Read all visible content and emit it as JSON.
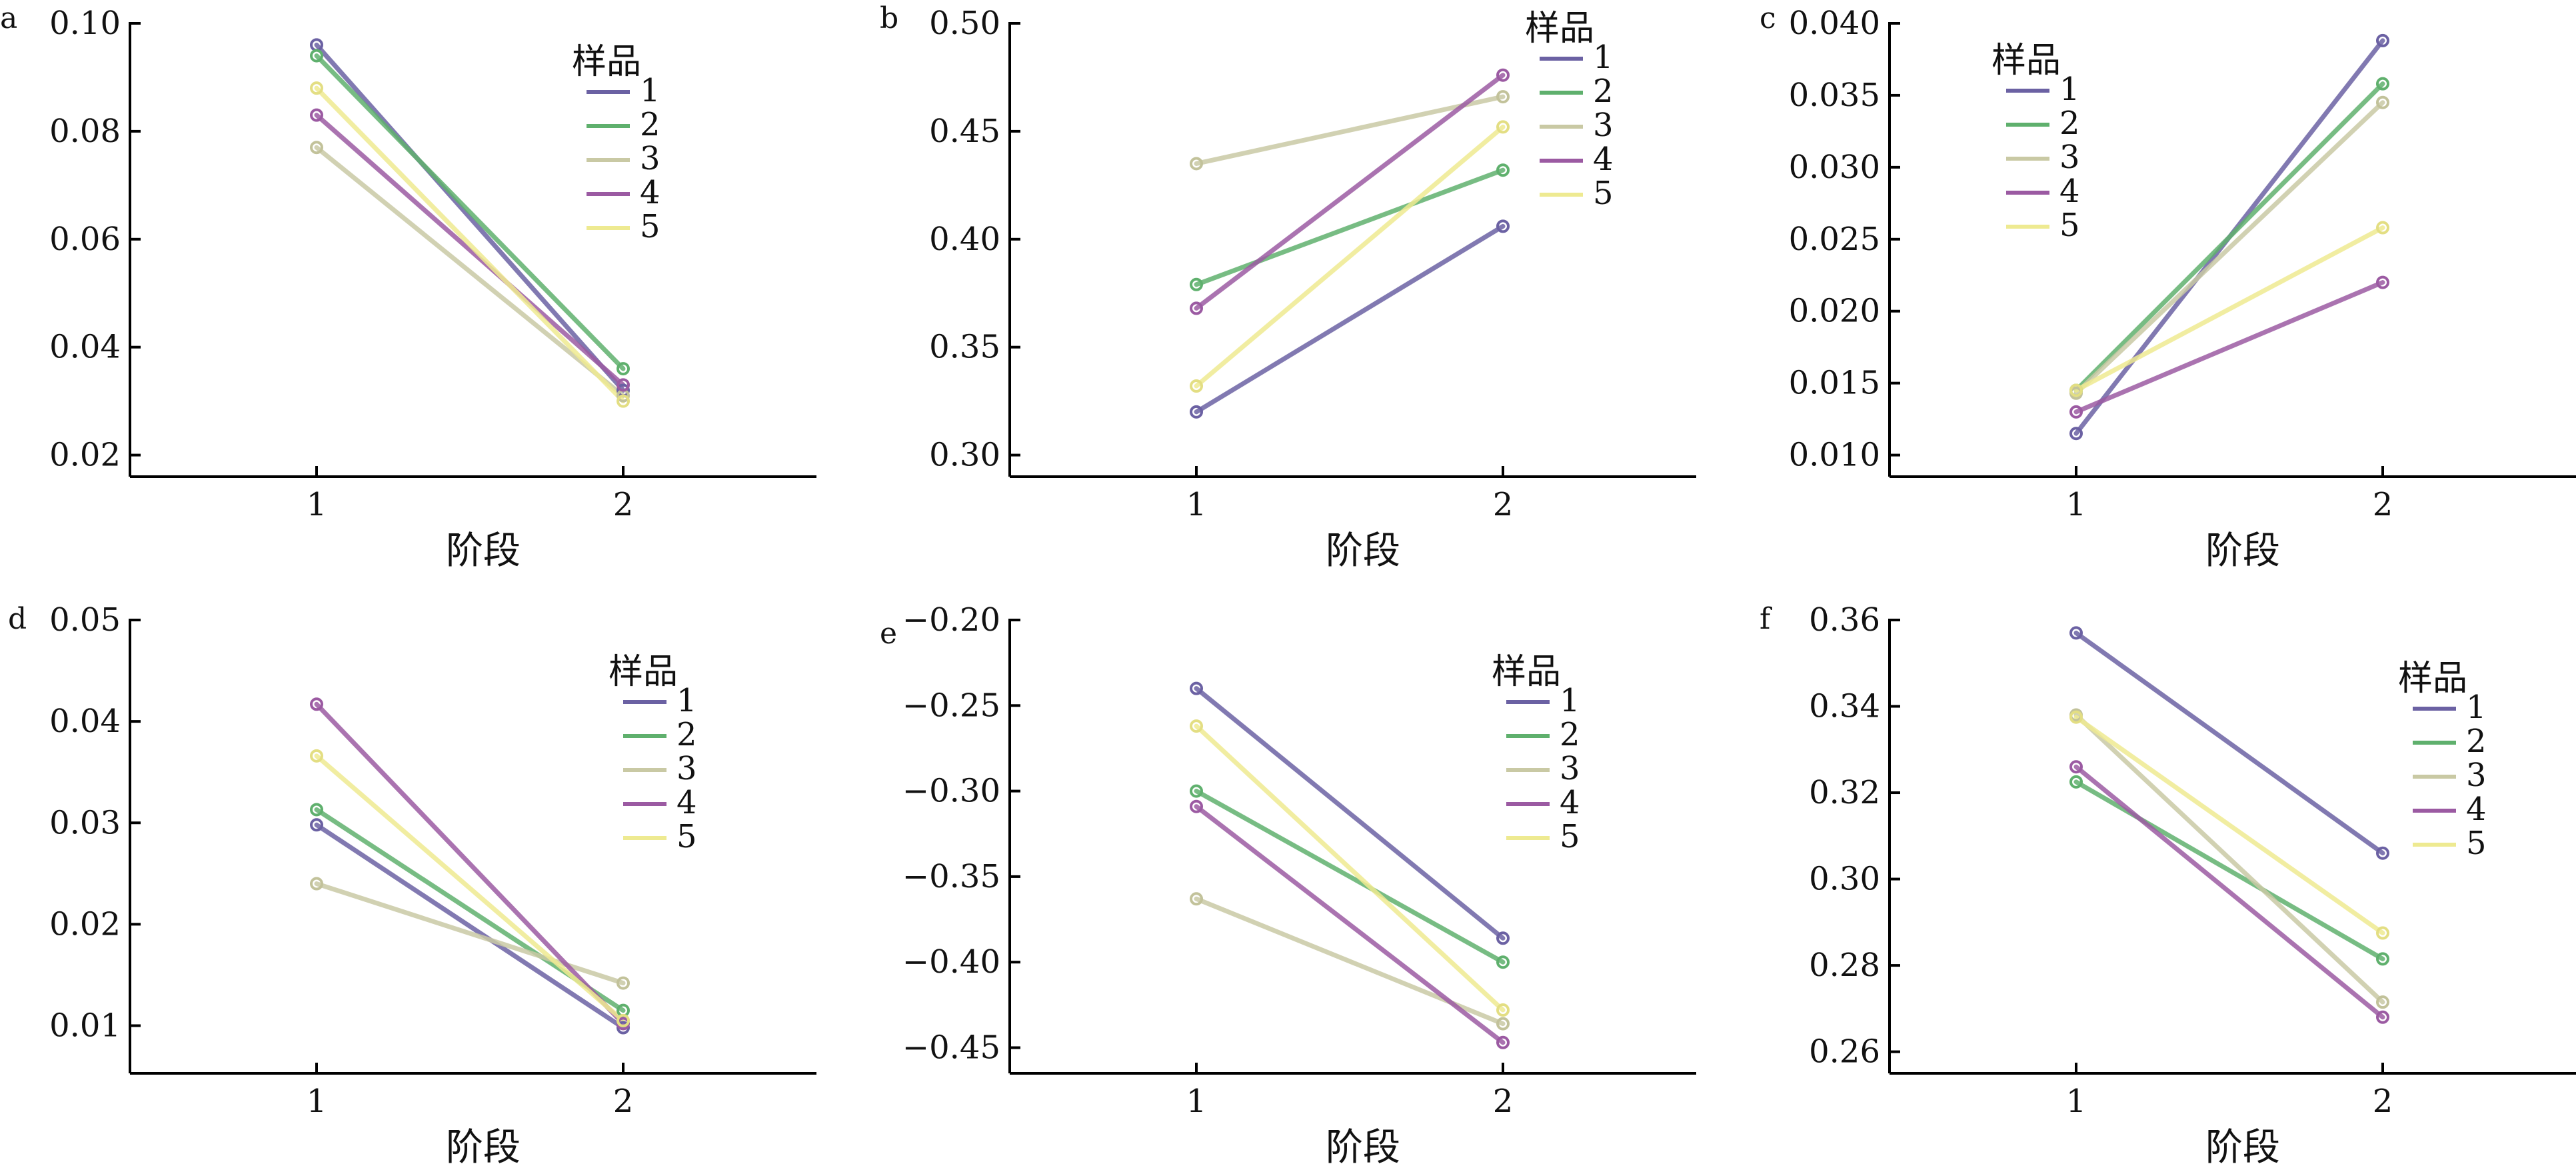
{
  "chart_data": [
    {
      "panel": "a",
      "type": "line",
      "x": [
        1,
        2
      ],
      "xticks": [
        "1",
        "2"
      ],
      "xlabel": "阶段",
      "ylabel": "",
      "ylim": [
        0.016,
        0.1
      ],
      "yticks": [
        "0.02",
        "0.04",
        "0.06",
        "0.08",
        "0.10"
      ],
      "grid": false,
      "legend_title": "样品",
      "legend_position": "top-right",
      "series": [
        {
          "name": "1",
          "values": [
            0.096,
            0.032
          ]
        },
        {
          "name": "2",
          "values": [
            0.094,
            0.036
          ]
        },
        {
          "name": "3",
          "values": [
            0.077,
            0.031
          ]
        },
        {
          "name": "4",
          "values": [
            0.083,
            0.033
          ]
        },
        {
          "name": "5",
          "values": [
            0.088,
            0.03
          ]
        }
      ]
    },
    {
      "panel": "b",
      "type": "line",
      "x": [
        1,
        2
      ],
      "xticks": [
        "1",
        "2"
      ],
      "xlabel": "阶段",
      "ylabel": "",
      "ylim": [
        0.29,
        0.5
      ],
      "yticks": [
        "0.30",
        "0.35",
        "0.40",
        "0.45",
        "0.50"
      ],
      "grid": false,
      "legend_title": "样品",
      "legend_position": "top-right",
      "series": [
        {
          "name": "1",
          "values": [
            0.32,
            0.406
          ]
        },
        {
          "name": "2",
          "values": [
            0.379,
            0.432
          ]
        },
        {
          "name": "3",
          "values": [
            0.435,
            0.466
          ]
        },
        {
          "name": "4",
          "values": [
            0.368,
            0.476
          ]
        },
        {
          "name": "5",
          "values": [
            0.332,
            0.452
          ]
        }
      ]
    },
    {
      "panel": "c",
      "type": "line",
      "x": [
        1,
        2
      ],
      "xticks": [
        "1",
        "2"
      ],
      "xlabel": "阶段",
      "ylabel": "",
      "ylim": [
        0.0085,
        0.04
      ],
      "yticks": [
        "0.010",
        "0.015",
        "0.020",
        "0.025",
        "0.030",
        "0.035",
        "0.040"
      ],
      "grid": false,
      "legend_title": "样品",
      "legend_position": "top-left",
      "series": [
        {
          "name": "1",
          "values": [
            0.0115,
            0.0388
          ]
        },
        {
          "name": "2",
          "values": [
            0.0145,
            0.0358
          ]
        },
        {
          "name": "3",
          "values": [
            0.0143,
            0.0345
          ]
        },
        {
          "name": "4",
          "values": [
            0.013,
            0.022
          ]
        },
        {
          "name": "5",
          "values": [
            0.0145,
            0.0258
          ]
        }
      ]
    },
    {
      "panel": "d",
      "type": "line",
      "x": [
        1,
        2
      ],
      "xticks": [
        "1",
        "2"
      ],
      "xlabel": "阶段",
      "ylabel": "",
      "ylim": [
        0.0053,
        0.05
      ],
      "yticks": [
        "0.01",
        "0.02",
        "0.03",
        "0.04",
        "0.05"
      ],
      "grid": false,
      "legend_title": "样品",
      "legend_position": "top-right",
      "series": [
        {
          "name": "1",
          "values": [
            0.0298,
            0.0098
          ]
        },
        {
          "name": "2",
          "values": [
            0.0313,
            0.0115
          ]
        },
        {
          "name": "3",
          "values": [
            0.024,
            0.0142
          ]
        },
        {
          "name": "4",
          "values": [
            0.0417,
            0.0102
          ]
        },
        {
          "name": "5",
          "values": [
            0.0366,
            0.0105
          ]
        }
      ]
    },
    {
      "panel": "e",
      "type": "line",
      "x": [
        1,
        2
      ],
      "xticks": [
        "1",
        "2"
      ],
      "xlabel": "阶段",
      "ylabel": "",
      "ylim": [
        -0.465,
        -0.2
      ],
      "yticks": [
        "−0.45",
        "−0.40",
        "−0.35",
        "−0.30",
        "−0.25",
        "−0.20"
      ],
      "grid": false,
      "legend_title": "样品",
      "legend_position": "top-right",
      "series": [
        {
          "name": "1",
          "values": [
            -0.24,
            -0.386
          ]
        },
        {
          "name": "2",
          "values": [
            -0.3,
            -0.4
          ]
        },
        {
          "name": "3",
          "values": [
            -0.363,
            -0.436
          ]
        },
        {
          "name": "4",
          "values": [
            -0.309,
            -0.447
          ]
        },
        {
          "name": "5",
          "values": [
            -0.262,
            -0.428
          ]
        }
      ]
    },
    {
      "panel": "f",
      "type": "line",
      "x": [
        1,
        2
      ],
      "xticks": [
        "1",
        "2"
      ],
      "xlabel": "阶段",
      "ylabel": "",
      "ylim": [
        0.255,
        0.36
      ],
      "yticks": [
        "0.26",
        "0.28",
        "0.30",
        "0.32",
        "0.34",
        "0.36"
      ],
      "grid": false,
      "legend_title": "样品",
      "legend_position": "right",
      "series": [
        {
          "name": "1",
          "values": [
            0.357,
            0.306
          ]
        },
        {
          "name": "2",
          "values": [
            0.3225,
            0.2815
          ]
        },
        {
          "name": "3",
          "values": [
            0.338,
            0.2715
          ]
        },
        {
          "name": "4",
          "values": [
            0.326,
            0.268
          ]
        },
        {
          "name": "5",
          "values": [
            0.3375,
            0.2875
          ]
        }
      ]
    }
  ],
  "series_colors": [
    "#6b61a3",
    "#5fb06d",
    "#c9c9a4",
    "#9b5aa2",
    "#eeea91"
  ],
  "marker_colors": [
    "#6b61a3",
    "#5fb06d",
    "#c2c29a",
    "#9b5aa2",
    "#e3de83"
  ]
}
